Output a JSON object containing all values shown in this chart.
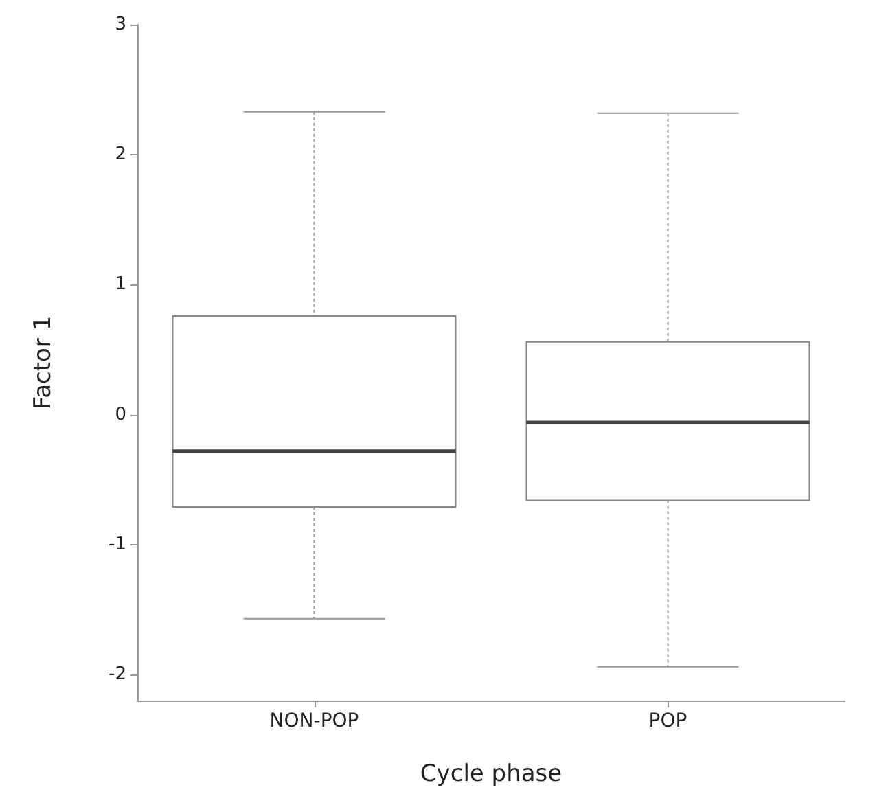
{
  "chart_data": {
    "type": "box",
    "xlabel": "Cycle phase",
    "ylabel": "Factor 1",
    "categories": [
      "NON-POP",
      "POP"
    ],
    "boxes": [
      {
        "low": -1.57,
        "q1": -0.71,
        "median": -0.28,
        "q3": 0.76,
        "high": 2.33
      },
      {
        "low": -1.94,
        "q1": -0.66,
        "median": -0.06,
        "q3": 0.56,
        "high": 2.32
      }
    ],
    "ylim": [
      -2.2,
      3
    ],
    "yticks": [
      -2,
      -1,
      0,
      1,
      2,
      3
    ]
  }
}
